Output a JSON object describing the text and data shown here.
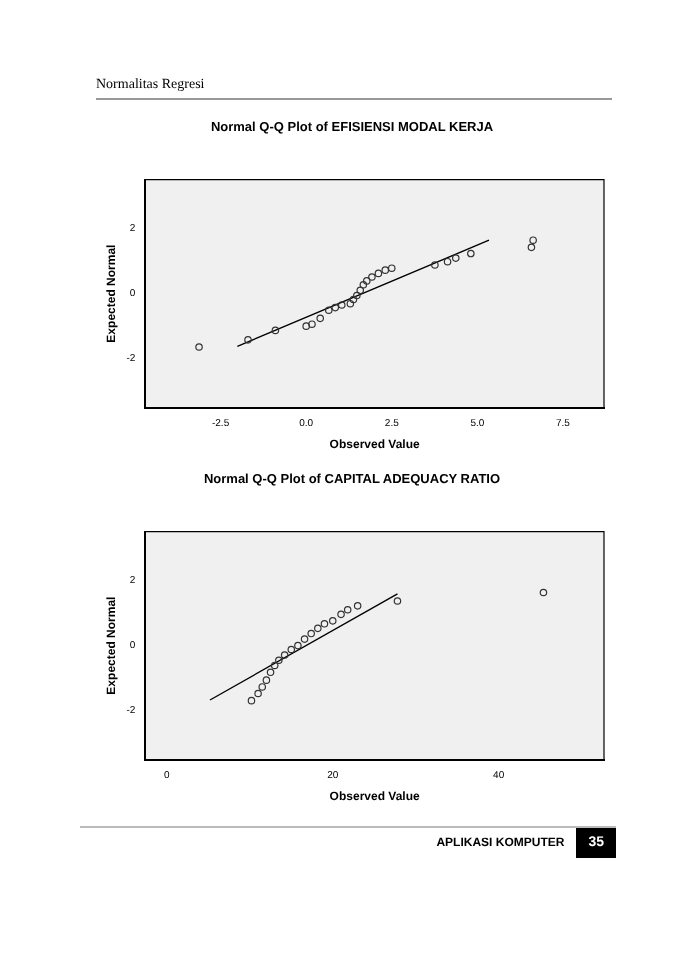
{
  "chart_data": [
    {
      "type": "scatter",
      "title": "Normal Q-Q Plot of EFISIENSI MODAL KERJA",
      "xlabel": "Observed Value",
      "ylabel": "Expected Normal",
      "annotations": [
        "Normalitas Regresi"
      ],
      "xlim": [
        -4.7,
        8.7
      ],
      "ylim": [
        -3.5,
        3.5
      ],
      "xticks": [
        {
          "value": -2.5,
          "label": "-2.5"
        },
        {
          "value": 0,
          "label": "0.0"
        },
        {
          "value": 2.5,
          "label": "2.5"
        },
        {
          "value": 5,
          "label": "5.0"
        },
        {
          "value": 7.5,
          "label": "7.5"
        }
      ],
      "yticks": [
        2,
        0,
        -2
      ],
      "grid": false,
      "legend": false,
      "series": [
        {
          "type": "scatter",
          "marker": "circle",
          "color": "#333333",
          "x": [
            -3.13,
            -1.7,
            -0.9,
            0.0,
            0.17,
            0.41,
            0.66,
            0.85,
            1.04,
            1.29,
            1.38,
            1.48,
            1.58,
            1.67,
            1.77,
            1.92,
            2.11,
            2.31,
            2.5,
            3.76,
            4.13,
            4.37,
            4.81,
            6.58,
            6.63
          ],
          "values": [
            -1.64,
            -1.42,
            -1.13,
            -1.0,
            -0.94,
            -0.76,
            -0.51,
            -0.43,
            -0.35,
            -0.31,
            -0.18,
            -0.06,
            0.1,
            0.27,
            0.39,
            0.51,
            0.62,
            0.72,
            0.78,
            0.88,
            0.98,
            1.09,
            1.23,
            1.42,
            1.64
          ]
        },
        {
          "type": "line",
          "marker": "none",
          "color": "#000000",
          "x": [
            -2.01,
            5.34
          ],
          "values": [
            -1.62,
            1.64
          ]
        }
      ]
    },
    {
      "type": "scatter",
      "title": "Normal Q-Q Plot of CAPITAL ADEQUACY RATIO",
      "xlabel": "Observed Value",
      "ylabel": "Expected Normal",
      "annotations": [
        "APLIKASI KOMPUTER",
        "35"
      ],
      "xlim": [
        -2.6,
        52.7
      ],
      "ylim": [
        -3.5,
        3.5
      ],
      "xticks": [
        0,
        20,
        40
      ],
      "yticks": [
        2,
        0,
        -2
      ],
      "grid": false,
      "legend": false,
      "series": [
        {
          "type": "scatter",
          "marker": "circle",
          "color": "#333333",
          "x": [
            10.2,
            11.0,
            11.5,
            12.0,
            12.5,
            13.0,
            13.5,
            14.2,
            15.0,
            15.8,
            16.6,
            17.4,
            18.2,
            19.0,
            20.0,
            21.0,
            21.8,
            23.0,
            27.8,
            45.4
          ],
          "values": [
            -1.69,
            -1.47,
            -1.27,
            -1.06,
            -0.82,
            -0.61,
            -0.45,
            -0.29,
            -0.12,
            0.0,
            0.2,
            0.37,
            0.53,
            0.67,
            0.76,
            0.96,
            1.1,
            1.22,
            1.37,
            1.63
          ]
        },
        {
          "type": "line",
          "marker": "none",
          "color": "#000000",
          "x": [
            5.2,
            27.8
          ],
          "values": [
            -1.67,
            1.59
          ]
        }
      ]
    }
  ]
}
